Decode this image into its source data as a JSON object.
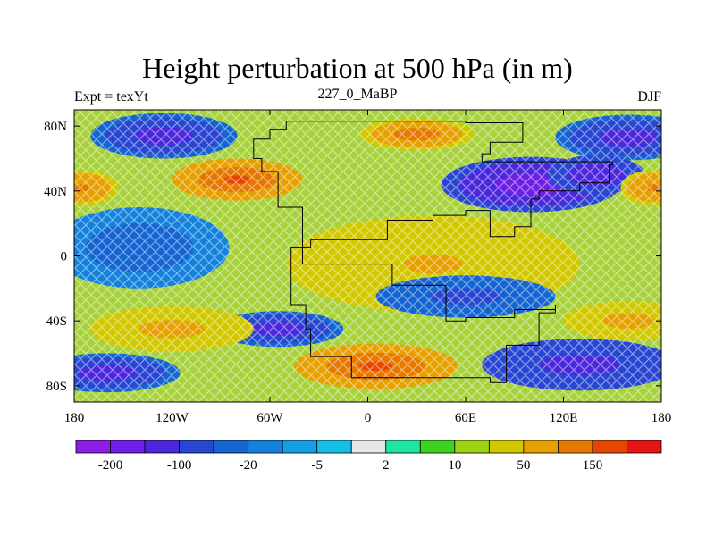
{
  "header": {
    "title": "Height perturbation at 500 hPa (in m)",
    "left_label": "Expt = texYt",
    "center_label": "227_0_MaBP",
    "right_label": "DJF"
  },
  "axes": {
    "y_ticks": [
      {
        "value": 80,
        "label": "80N"
      },
      {
        "value": 40,
        "label": "40N"
      },
      {
        "value": 0,
        "label": "0"
      },
      {
        "value": -40,
        "label": "40S"
      },
      {
        "value": -80,
        "label": "80S"
      }
    ],
    "x_ticks": [
      {
        "value": -180,
        "label": "180"
      },
      {
        "value": -120,
        "label": "120W"
      },
      {
        "value": -60,
        "label": "60W"
      },
      {
        "value": 0,
        "label": "0"
      },
      {
        "value": 60,
        "label": "60E"
      },
      {
        "value": 120,
        "label": "120E"
      },
      {
        "value": 180,
        "label": "180"
      }
    ],
    "lon_range": [
      -180,
      180
    ],
    "lat_range": [
      -90,
      90
    ]
  },
  "colorbar": {
    "colors": [
      "#8c1ee6",
      "#6e1ee6",
      "#4b28dc",
      "#2846d2",
      "#1464d2",
      "#1482dc",
      "#14a0e6",
      "#14bee6",
      "#e6e6e6",
      "#1ee6a0",
      "#3cd21e",
      "#a0d214",
      "#d2c800",
      "#e6a000",
      "#e67800",
      "#e64600",
      "#e61414"
    ],
    "labels": [
      {
        "index": 1,
        "text": "-200"
      },
      {
        "index": 3,
        "text": "-100"
      },
      {
        "index": 5,
        "text": "-20"
      },
      {
        "index": 7,
        "text": "-5"
      },
      {
        "index": 9,
        "text": "2"
      },
      {
        "index": 11,
        "text": "10"
      },
      {
        "index": 13,
        "text": "50"
      },
      {
        "index": 15,
        "text": "150"
      }
    ]
  },
  "field": {
    "cells": [
      {
        "lon": 160,
        "lat": 73,
        "lon_radius": 45,
        "lat_radius": 14,
        "value": -120
      },
      {
        "lon": 100,
        "lat": 44,
        "lon_radius": 55,
        "lat_radius": 17,
        "value": -200
      },
      {
        "lon": 140,
        "lat": 50,
        "lon_radius": 30,
        "lat_radius": 12,
        "value": -150
      },
      {
        "lon": -125,
        "lat": 74,
        "lon_radius": 45,
        "lat_radius": 14,
        "value": -120
      },
      {
        "lon": -80,
        "lat": 47,
        "lon_radius": 40,
        "lat_radius": 13,
        "value": 150
      },
      {
        "lon": -175,
        "lat": 42,
        "lon_radius": 22,
        "lat_radius": 11,
        "value": 100
      },
      {
        "lon": 175,
        "lat": 42,
        "lon_radius": 20,
        "lat_radius": 11,
        "value": 100
      },
      {
        "lon": 30,
        "lat": 75,
        "lon_radius": 35,
        "lat_radius": 10,
        "value": 120
      },
      {
        "lon": -140,
        "lat": 5,
        "lon_radius": 55,
        "lat_radius": 25,
        "value": -30
      },
      {
        "lon": 40,
        "lat": -5,
        "lon_radius": 90,
        "lat_radius": 30,
        "value": 50
      },
      {
        "lon": 60,
        "lat": -25,
        "lon_radius": 55,
        "lat_radius": 13,
        "value": -60
      },
      {
        "lon": -55,
        "lat": -45,
        "lon_radius": 40,
        "lat_radius": 11,
        "value": -120
      },
      {
        "lon": 5,
        "lat": -68,
        "lon_radius": 50,
        "lat_radius": 14,
        "value": 150
      },
      {
        "lon": -160,
        "lat": -72,
        "lon_radius": 45,
        "lat_radius": 12,
        "value": -120
      },
      {
        "lon": 130,
        "lat": -67,
        "lon_radius": 60,
        "lat_radius": 16,
        "value": -130
      },
      {
        "lon": -120,
        "lat": -45,
        "lon_radius": 50,
        "lat_radius": 14,
        "value": 60
      },
      {
        "lon": 160,
        "lat": -40,
        "lon_radius": 40,
        "lat_radius": 12,
        "value": 60
      }
    ]
  },
  "continent": {
    "outline": [
      [
        -50,
        83
      ],
      [
        0,
        83
      ],
      [
        30,
        83
      ],
      [
        60,
        82
      ],
      [
        95,
        78
      ],
      [
        95,
        70
      ],
      [
        75,
        63
      ],
      [
        70,
        58
      ],
      [
        100,
        58
      ],
      [
        150,
        56
      ],
      [
        148,
        45
      ],
      [
        130,
        40
      ],
      [
        105,
        35
      ],
      [
        100,
        18
      ],
      [
        90,
        12
      ],
      [
        75,
        28
      ],
      [
        60,
        25
      ],
      [
        40,
        22
      ],
      [
        12,
        10
      ],
      [
        -35,
        5
      ],
      [
        -47,
        -30
      ],
      [
        -38,
        -45
      ],
      [
        -35,
        -62
      ],
      [
        -10,
        -75
      ],
      [
        75,
        -78
      ],
      [
        85,
        -55
      ],
      [
        105,
        -35
      ],
      [
        115,
        -30
      ],
      [
        115,
        -33
      ],
      [
        90,
        -38
      ],
      [
        60,
        -40
      ],
      [
        48,
        -18
      ],
      [
        15,
        -5
      ],
      [
        -40,
        30
      ],
      [
        -55,
        52
      ],
      [
        -65,
        60
      ],
      [
        -70,
        72
      ],
      [
        -60,
        78
      ],
      [
        -50,
        83
      ]
    ]
  }
}
